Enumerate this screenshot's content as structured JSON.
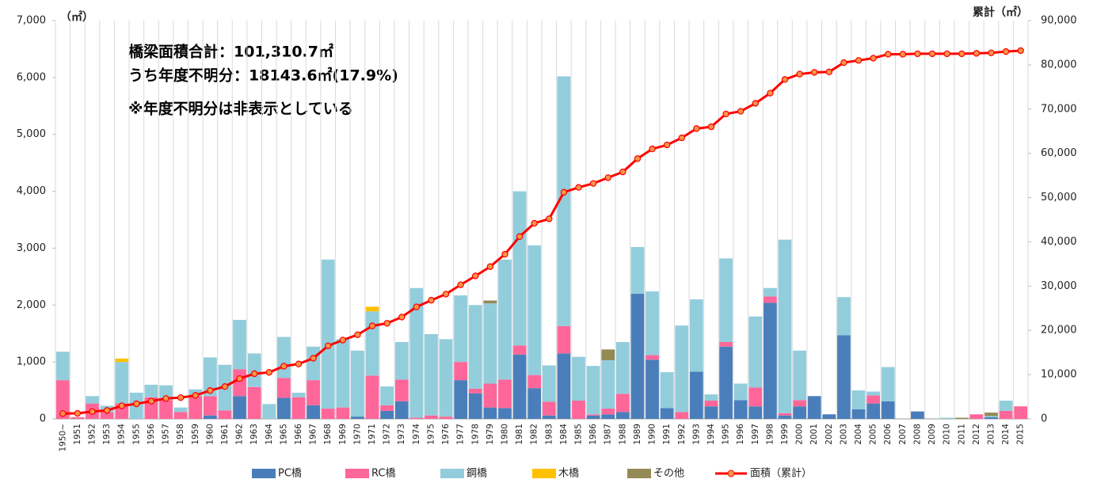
{
  "chart_data": {
    "type": "bar",
    "ylabel": "（㎡）",
    "y2label": "累計（㎡）",
    "annotations": [
      "橋梁面積合計：101,310.7㎡",
      "うち年度不明分：18143.6㎡(17.9%)",
      "※年度不明分は非表示としている"
    ],
    "categories": [
      "1950~",
      "1951",
      "1952",
      "1953",
      "1954",
      "1955",
      "1956",
      "1957",
      "1958",
      "1959",
      "1960",
      "1961",
      "1962",
      "1963",
      "1964",
      "1965",
      "1966",
      "1967",
      "1968",
      "1969",
      "1970",
      "1971",
      "1972",
      "1973",
      "1974",
      "1975",
      "1976",
      "1977",
      "1978",
      "1979",
      "1980",
      "1981",
      "1982",
      "1983",
      "1984",
      "1985",
      "1986",
      "1987",
      "1988",
      "1989",
      "1990",
      "1991",
      "1992",
      "1993",
      "1994",
      "1995",
      "1996",
      "1997",
      "1998",
      "1999",
      "2000",
      "2001",
      "2002",
      "2003",
      "2004",
      "2005",
      "2006",
      "2007",
      "2008",
      "2009",
      "2010",
      "2011",
      "2012",
      "2013",
      "2014",
      "2015"
    ],
    "series": [
      {
        "name": "PC橋",
        "type": "bar",
        "color": "#4a7ebb",
        "values": [
          0,
          0,
          0,
          0,
          0,
          0,
          0,
          0,
          0,
          0,
          60,
          0,
          400,
          0,
          0,
          370,
          0,
          240,
          0,
          0,
          40,
          0,
          140,
          310,
          0,
          0,
          0,
          680,
          450,
          200,
          190,
          1130,
          540,
          60,
          1150,
          0,
          60,
          80,
          120,
          2200,
          1040,
          190,
          0,
          830,
          220,
          1270,
          330,
          220,
          2040,
          60,
          220,
          400,
          80,
          1470,
          170,
          270,
          310,
          0,
          130,
          0,
          0,
          0,
          0,
          30,
          0,
          0
        ]
      },
      {
        "name": "RC橋",
        "type": "bar",
        "color": "#ff6699",
        "values": [
          680,
          30,
          270,
          120,
          270,
          0,
          380,
          330,
          120,
          400,
          340,
          150,
          470,
          560,
          0,
          350,
          380,
          440,
          180,
          200,
          0,
          760,
          100,
          380,
          20,
          60,
          40,
          320,
          80,
          420,
          500,
          160,
          230,
          240,
          480,
          320,
          20,
          100,
          320,
          0,
          80,
          0,
          120,
          0,
          100,
          80,
          0,
          330,
          110,
          40,
          110,
          0,
          0,
          0,
          0,
          140,
          0,
          0,
          0,
          0,
          0,
          0,
          80,
          0,
          140,
          220
        ]
      },
      {
        "name": "鋼橋",
        "type": "bar",
        "color": "#92cddc",
        "values": [
          500,
          0,
          130,
          110,
          730,
          460,
          220,
          260,
          80,
          120,
          680,
          800,
          870,
          590,
          260,
          720,
          80,
          590,
          2620,
          1200,
          1160,
          1130,
          330,
          660,
          2280,
          1430,
          1360,
          1170,
          1470,
          1410,
          2110,
          2710,
          2280,
          640,
          4390,
          770,
          850,
          850,
          910,
          820,
          1120,
          630,
          1520,
          1270,
          110,
          1470,
          290,
          1250,
          150,
          3050,
          870,
          0,
          0,
          670,
          330,
          70,
          600,
          0,
          0,
          0,
          20,
          0,
          0,
          20,
          180,
          0
        ]
      },
      {
        "name": "木橋",
        "type": "bar",
        "color": "#ffc000",
        "values": [
          0,
          0,
          0,
          0,
          60,
          0,
          0,
          0,
          0,
          0,
          0,
          0,
          0,
          0,
          0,
          0,
          0,
          0,
          0,
          0,
          0,
          80,
          0,
          0,
          0,
          0,
          0,
          0,
          0,
          0,
          0,
          0,
          0,
          0,
          0,
          0,
          0,
          0,
          0,
          0,
          0,
          0,
          0,
          0,
          0,
          0,
          0,
          0,
          0,
          0,
          0,
          0,
          0,
          0,
          0,
          0,
          0,
          0,
          0,
          0,
          0,
          0,
          0,
          0,
          0,
          0
        ]
      },
      {
        "name": "その他",
        "type": "bar",
        "color": "#948a54",
        "values": [
          0,
          0,
          0,
          0,
          0,
          0,
          0,
          0,
          0,
          0,
          0,
          0,
          0,
          0,
          0,
          0,
          0,
          0,
          0,
          0,
          0,
          0,
          0,
          0,
          0,
          0,
          0,
          0,
          0,
          50,
          0,
          0,
          0,
          0,
          0,
          0,
          0,
          190,
          0,
          0,
          0,
          0,
          0,
          0,
          0,
          0,
          0,
          0,
          0,
          0,
          0,
          0,
          0,
          0,
          0,
          0,
          0,
          0,
          0,
          0,
          0,
          20,
          0,
          60,
          0,
          0
        ]
      },
      {
        "name": "面積（累計）",
        "type": "line",
        "axis": "y2",
        "color": "#ff0000",
        "marker_color": "#f79646",
        "values": [
          1200,
          1250,
          1650,
          1900,
          2950,
          3400,
          4000,
          4600,
          4800,
          5300,
          6400,
          7300,
          9100,
          10200,
          10500,
          11900,
          12400,
          13700,
          16500,
          17800,
          19000,
          21000,
          21600,
          23000,
          25300,
          26800,
          28200,
          30300,
          32300,
          34400,
          37200,
          41200,
          44200,
          45200,
          51200,
          52300,
          53200,
          54500,
          55800,
          58800,
          61000,
          61900,
          63500,
          65600,
          66000,
          68900,
          69500,
          71300,
          73600,
          76700,
          77900,
          78300,
          78400,
          80500,
          81000,
          81500,
          82400,
          82400,
          82500,
          82500,
          82500,
          82500,
          82600,
          82700,
          83000,
          83200
        ]
      }
    ],
    "ylim": [
      0,
      7000
    ],
    "yticks": [
      0,
      {
        "value": 1000,
        "label": "1,000"
      },
      {
        "value": 2000,
        "label": "2,000"
      },
      {
        "value": 3000,
        "label": "3,000"
      },
      {
        "value": 4000,
        "label": "4,000"
      },
      {
        "value": 5000,
        "label": "5,000"
      },
      {
        "value": 6000,
        "label": "6,000"
      },
      {
        "value": 7000,
        "label": "7,000"
      }
    ],
    "y2lim": [
      0,
      90000
    ],
    "y2ticks": [
      0,
      {
        "value": 10000,
        "label": "10,000"
      },
      {
        "value": 20000,
        "label": "20,000"
      },
      {
        "value": 30000,
        "label": "30,000"
      },
      {
        "value": 40000,
        "label": "40,000"
      },
      {
        "value": 50000,
        "label": "50,000"
      },
      {
        "value": 60000,
        "label": "60,000"
      },
      {
        "value": 70000,
        "label": "70,000"
      },
      {
        "value": 80000,
        "label": "80,000"
      },
      {
        "value": 90000,
        "label": "90,000"
      }
    ],
    "legend": "bottom"
  }
}
